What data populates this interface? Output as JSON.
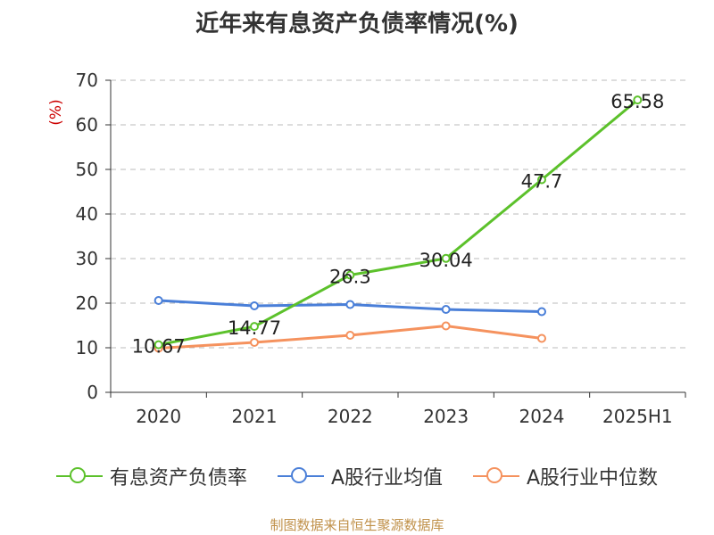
{
  "chart_data": {
    "type": "line",
    "title": "近年来有息资产负债率情况(%)",
    "ylabel": "(%)",
    "xlabel": "",
    "categories": [
      "2020",
      "2021",
      "2022",
      "2023",
      "2024",
      "2025H1"
    ],
    "ylim": [
      0,
      70
    ],
    "yticks": [
      0,
      10,
      20,
      30,
      40,
      50,
      60,
      70
    ],
    "grid": true,
    "legend_position": "bottom",
    "series": [
      {
        "name": "有息资产负债率",
        "color": "#5cc12b",
        "values": [
          10.67,
          14.77,
          26.3,
          30.04,
          47.7,
          65.58
        ],
        "labels": [
          "10.67",
          "14.77",
          "26.3",
          "30.04",
          "47.7",
          "65.58"
        ]
      },
      {
        "name": "A股行业均值",
        "color": "#4a7fd8",
        "values": [
          20.6,
          19.4,
          19.7,
          18.6,
          18.1,
          null
        ]
      },
      {
        "name": "A股行业中位数",
        "color": "#f5925e",
        "values": [
          9.9,
          11.2,
          12.8,
          14.9,
          12.1,
          null
        ]
      }
    ]
  },
  "footer": {
    "source": "制图数据来自恒生聚源数据库"
  },
  "colors": {
    "axis": "#333333",
    "grid": "#bbbbbb",
    "ylabel": "#cc0000"
  }
}
